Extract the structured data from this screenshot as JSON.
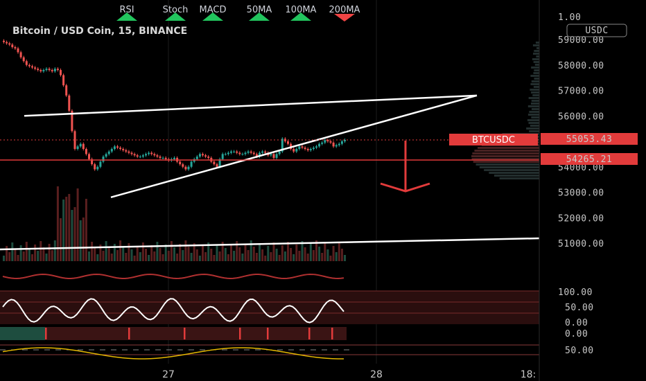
{
  "indicators": [
    {
      "label": "RSI",
      "signal": "up"
    },
    {
      "label": "Stoch",
      "signal": "up"
    },
    {
      "label": "MACD",
      "signal": "up"
    },
    {
      "label": "50MA",
      "signal": "up"
    },
    {
      "label": "100MA",
      "signal": "up"
    },
    {
      "label": "200MA",
      "signal": "down"
    }
  ],
  "colors": {
    "up": "#22c55e",
    "down": "#ef4444",
    "candle_up": "#26a69a",
    "candle_down": "#ef5350",
    "price_tag": "#e23b3b"
  },
  "chart_title": "Bitcoin / USD Coin, 15, BINANCE",
  "currency": "USDC",
  "symbol_tag": "BTCUSDC",
  "chart_data": {
    "type": "candlestick",
    "title": "Bitcoin / USD Coin, 15, BINANCE",
    "y_ticks": [
      "59000.00",
      "58000.00",
      "57000.00",
      "56000.00",
      "54000.00",
      "53000.00",
      "52000.00",
      "51000.00"
    ],
    "y_top_label": "1.00",
    "ylim": [
      50500,
      59400
    ],
    "current_price": "55053.43",
    "support_price": "54265.21",
    "x_labels": [
      "27",
      "28",
      "18:"
    ],
    "rsi_ticks": [
      "100.00",
      "50.00",
      "0.00"
    ],
    "stoch_tick": "0.00",
    "macd_tick": "50.00",
    "close_series": [
      58900,
      58850,
      58800,
      58700,
      58650,
      58500,
      58300,
      58150,
      58000,
      57950,
      57900,
      57850,
      57800,
      57750,
      57800,
      57850,
      57800,
      57750,
      57850,
      57800,
      57600,
      57200,
      56800,
      56200,
      55400,
      54700,
      54800,
      54900,
      54700,
      54500,
      54300,
      54100,
      53900,
      54000,
      54200,
      54400,
      54500,
      54600,
      54700,
      54800,
      54750,
      54700,
      54650,
      54600,
      54550,
      54500,
      54450,
      54400,
      54400,
      54450,
      54500,
      54550,
      54500,
      54450,
      54400,
      54350,
      54350,
      54300,
      54250,
      54300,
      54350,
      54200,
      54100,
      54000,
      53900,
      54000,
      54200,
      54300,
      54400,
      54500,
      54450,
      54400,
      54350,
      54200,
      54100,
      54000,
      54300,
      54500,
      54500,
      54550,
      54600,
      54600,
      54550,
      54500,
      54500,
      54550,
      54600,
      54550,
      54500,
      54400,
      54550,
      54600,
      54550,
      54450,
      54500,
      54350,
      54500,
      54600,
      55100,
      55000,
      54900,
      54700,
      54600,
      54700,
      54800,
      54750,
      54700,
      54650,
      54700,
      54750,
      54800,
      54900,
      54950,
      55050,
      55000,
      54950,
      54800,
      54850,
      54900,
      55000,
      55053
    ],
    "trendline_upper": {
      "from": [
        35,
        56000
      ],
      "to": [
        688,
        56800
      ]
    },
    "trendline_lower": {
      "from": [
        160,
        52800
      ],
      "to": [
        688,
        56800
      ]
    },
    "support_line_value": 51050,
    "projection": "down"
  }
}
